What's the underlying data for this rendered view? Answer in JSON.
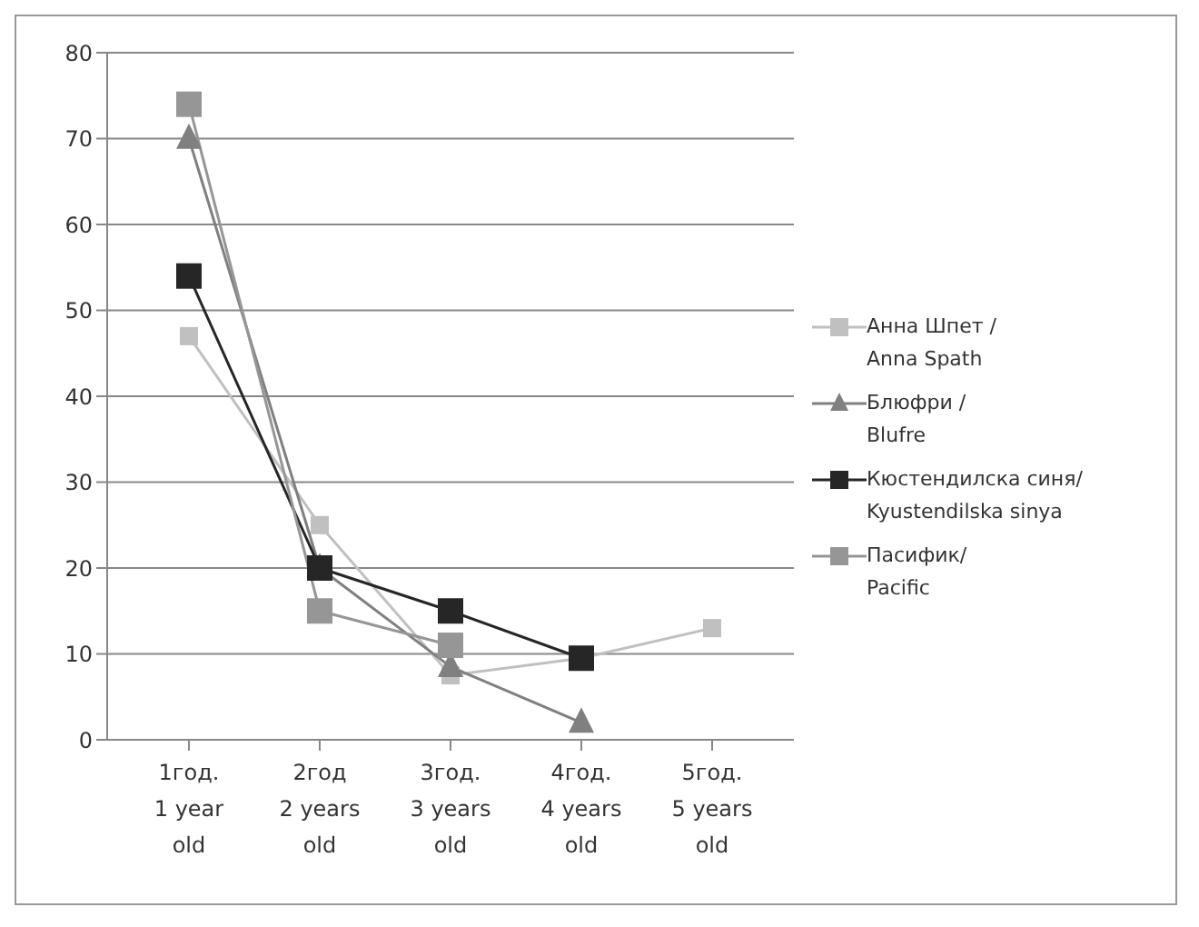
{
  "chart_data": {
    "type": "line",
    "categories": [
      "1год.\n1 year\nold",
      "2год\n2 years\nold",
      "3год.\n3 years\nold",
      "4год.\n4 years\nold",
      "5год.\n5 years\nold"
    ],
    "series": [
      {
        "name": "Анна Шпет /\nAnna Spath",
        "color": "#c0c0c0",
        "marker": "square",
        "values": [
          47,
          25,
          7.5,
          9.5,
          13
        ]
      },
      {
        "name": "Блюфри /\nBlufre",
        "color": "#808080",
        "marker": "triangle",
        "values": [
          70,
          20,
          8.5,
          2,
          null
        ]
      },
      {
        "name": "Кюстендилска синя/\nKyustendilska sinya",
        "color": "#262626",
        "marker": "square",
        "values": [
          54,
          20,
          15,
          9.5,
          null
        ]
      },
      {
        "name": "Пасифик/\nPacific",
        "color": "#969696",
        "marker": "square",
        "values": [
          74,
          15,
          11,
          null,
          null
        ]
      }
    ],
    "ylim": [
      0,
      80
    ],
    "yticks": [
      0,
      10,
      20,
      30,
      40,
      50,
      60,
      70,
      80
    ],
    "grid": "y",
    "legend": "right"
  }
}
